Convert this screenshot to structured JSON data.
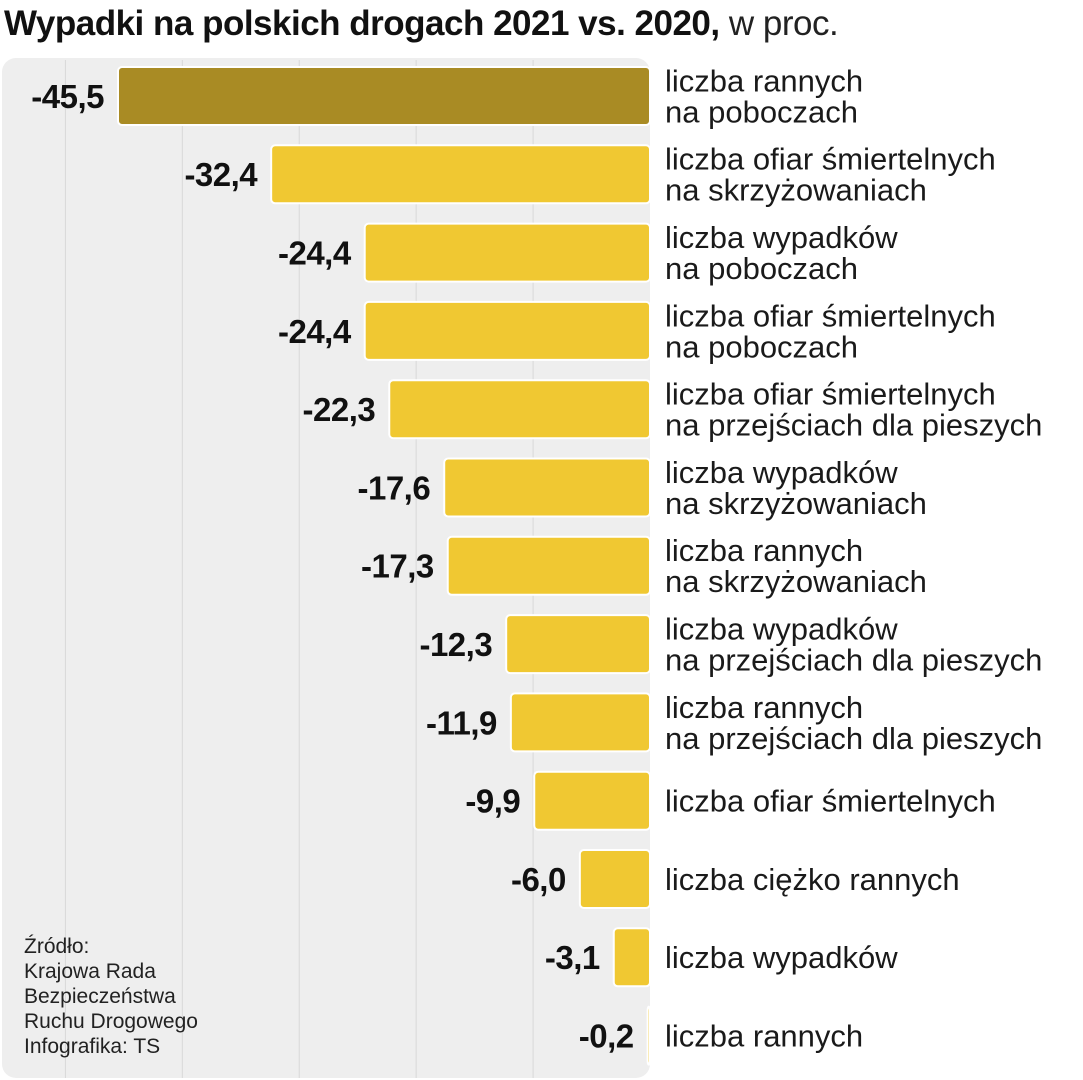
{
  "title": "Wypadki na polskich drogach 2021 vs. 2020,",
  "title_unit": "w proc.",
  "source_lines": [
    "Źródło:",
    "Krajowa Rada",
    "Bezpieczeństwa",
    "Ruchu Drogowego",
    "Infografika: TS"
  ],
  "colors": {
    "highlight_bar": "#a98b24",
    "bar": "#f0c832",
    "bar_stroke": "#ffffff",
    "panel": "#eeeeee",
    "gridline": "#d8d8d8",
    "value_text": "#111111",
    "label_text": "#1a1a1a"
  },
  "chart_data": {
    "type": "bar",
    "orientation": "horizontal",
    "title": "Wypadki na polskich drogach 2021 vs. 2020, w proc.",
    "xlabel": "",
    "ylabel": "",
    "xlim": [
      -50,
      0
    ],
    "grid": true,
    "categories": [
      [
        "liczba rannych",
        "na poboczach"
      ],
      [
        "liczba ofiar  śmiertelnych",
        "na skrzyżowaniach"
      ],
      [
        "liczba wypadków",
        "na poboczach"
      ],
      [
        "liczba ofiar śmiertelnych",
        "na poboczach"
      ],
      [
        "liczba ofiar śmiertelnych",
        "na przejściach dla pieszych"
      ],
      [
        "liczba wypadków",
        "na skrzyżowaniach"
      ],
      [
        "liczba rannych",
        "na skrzyżowaniach"
      ],
      [
        "liczba wypadków",
        "na przejściach dla pieszych"
      ],
      [
        "liczba rannych",
        "na przejściach dla pieszych"
      ],
      [
        "liczba ofiar śmiertelnych"
      ],
      [
        "liczba ciężko rannych"
      ],
      [
        "liczba wypadków"
      ],
      [
        "liczba rannych"
      ]
    ],
    "values": [
      -45.5,
      -32.4,
      -24.4,
      -24.4,
      -22.3,
      -17.6,
      -17.3,
      -12.3,
      -11.9,
      -9.9,
      -6.0,
      -3.1,
      -0.2
    ],
    "value_labels": [
      "-45,5",
      "-32,4",
      "-24,4",
      "-24,4",
      "-22,3",
      "-17,6",
      "-17,3",
      "-12,3",
      "-11,9",
      "-9,9",
      "-6,0",
      "-3,1",
      "-0,2"
    ],
    "highlight_index": 0
  }
}
